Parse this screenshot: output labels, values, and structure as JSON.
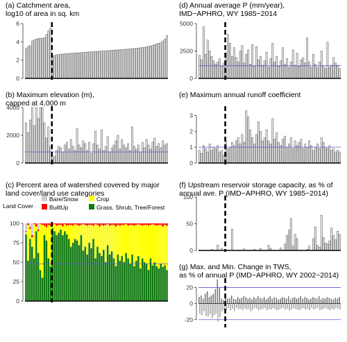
{
  "chart_data": [
    {
      "id": "a",
      "type": "bar",
      "title": "(a) Catchment area,\nlog10 of area in sq. km",
      "ylim": [
        0,
        6
      ],
      "yticks": [
        0,
        2,
        4,
        6
      ],
      "values": [
        3.3,
        3.5,
        3.6,
        4.1,
        4.2,
        4.3,
        4.35,
        4.4,
        4.4,
        4.45,
        4.8,
        5.2,
        5.5,
        2.45,
        2.5,
        2.6,
        2.6,
        2.65,
        2.65,
        2.7,
        2.7,
        2.72,
        2.75,
        2.75,
        2.78,
        2.8,
        2.8,
        2.82,
        2.85,
        2.85,
        2.88,
        2.9,
        2.9,
        2.92,
        2.95,
        2.95,
        2.98,
        3.0,
        3.0,
        3.02,
        3.05,
        3.05,
        3.08,
        3.1,
        3.1,
        3.12,
        3.15,
        3.15,
        3.18,
        3.2,
        3.2,
        3.22,
        3.25,
        3.28,
        3.3,
        3.32,
        3.35,
        3.38,
        3.4,
        3.45,
        3.5,
        3.55,
        3.6,
        3.7,
        3.8,
        3.85,
        3.9,
        4.1,
        4.3,
        4.7
      ],
      "divider_index": 13,
      "bar_fill": "#eeeeee",
      "bar_stroke": "#444444"
    },
    {
      "id": "b",
      "type": "bar",
      "title": "(b) Maximum elevation (m),\ncapped at 4,000 m",
      "ylim": [
        0,
        4000
      ],
      "yticks": [
        0,
        2000,
        4000
      ],
      "values": [
        2900,
        2200,
        3100,
        4000,
        2700,
        4000,
        3200,
        4000,
        4000,
        2900,
        1800,
        2600,
        1200,
        400,
        500,
        900,
        1200,
        1100,
        800,
        1300,
        1500,
        1000,
        1700,
        1200,
        900,
        2500,
        1300,
        1100,
        1600,
        1400,
        900,
        1500,
        700,
        1400,
        2300,
        1300,
        1000,
        2400,
        900,
        1200,
        1900,
        800,
        1100,
        1300,
        1600,
        2000,
        1000,
        1700,
        1300,
        1100,
        1400,
        900,
        2600,
        1200,
        1000,
        1300,
        800,
        1500,
        1100,
        1700,
        1300,
        1000,
        1500,
        1800,
        1200,
        1400,
        1100,
        1600,
        1300,
        1400
      ],
      "divider_index": 13,
      "ref_line": 800,
      "ref_color": "#5b5bd6"
    },
    {
      "id": "c",
      "type": "stacked_bar",
      "title": "(c) Percent area of watershed covered by major\nland cover/land use categories",
      "ylim": [
        0,
        100
      ],
      "yticks": [
        0,
        25,
        50,
        75,
        100
      ],
      "legend_title": "Land Cover",
      "legend": [
        {
          "label": "Bare/Snow",
          "color": "#cccccc"
        },
        {
          "label": "Crop",
          "color": "#ffff00"
        },
        {
          "label": "BuiltUp",
          "color": "#ff0000"
        },
        {
          "label": "Grass, Shrub, Tree/Forest",
          "color": "#127a12"
        }
      ],
      "ref_line": 48,
      "ref_color": "#5b5bd6",
      "divider_index": 13,
      "green": [
        86,
        52,
        80,
        70,
        55,
        90,
        62,
        40,
        30,
        85,
        78,
        55,
        45,
        94,
        90,
        85,
        88,
        92,
        85,
        90,
        86,
        80,
        70,
        75,
        80,
        78,
        72,
        85,
        65,
        70,
        60,
        75,
        68,
        80,
        55,
        70,
        62,
        58,
        66,
        50,
        72,
        60,
        64,
        55,
        45,
        60,
        52,
        58,
        50,
        62,
        55,
        48,
        60,
        45,
        52,
        58,
        42,
        55,
        50,
        48,
        40,
        55,
        46,
        50,
        45,
        42,
        48,
        44,
        46,
        40
      ],
      "bare": [
        10,
        0,
        5,
        15,
        0,
        0,
        8,
        0,
        0,
        0,
        0,
        0,
        0,
        0,
        0,
        0,
        0,
        0,
        0,
        0,
        0,
        0,
        0,
        0,
        0,
        0,
        0,
        0,
        0,
        0,
        0,
        0,
        0,
        0,
        0,
        0,
        0,
        0,
        0,
        0,
        0,
        0,
        0,
        0,
        0,
        0,
        0,
        0,
        0,
        0,
        0,
        0,
        0,
        0,
        0,
        0,
        0,
        0,
        0,
        0,
        0,
        0,
        0,
        0,
        0,
        0,
        0,
        0,
        0,
        0
      ],
      "built": [
        1,
        2,
        2,
        3,
        1,
        4,
        2,
        1,
        2,
        3,
        5,
        2,
        3,
        2,
        1,
        3,
        2,
        2,
        4,
        1,
        3,
        2,
        2,
        3,
        1,
        2,
        3,
        2,
        1,
        2,
        3,
        2,
        2,
        3,
        1,
        2,
        4,
        2,
        3,
        2,
        1,
        3,
        2,
        2,
        4,
        2,
        3,
        2,
        2,
        1,
        3,
        2,
        2,
        3,
        2,
        1,
        2,
        3,
        2,
        2,
        3,
        2,
        1,
        2,
        3,
        2,
        2,
        4,
        2,
        3
      ]
    },
    {
      "id": "d",
      "type": "bar",
      "title": "(d) Annual average P (mm/year),\nIMD−APHRO, WY 1985−2014",
      "ylim": [
        0,
        5000
      ],
      "yticks": [
        0,
        2500,
        5000
      ],
      "ytick_labels": [
        "0",
        "2500",
        "5000"
      ],
      "values": [
        2100,
        1700,
        4700,
        2200,
        3500,
        2500,
        2000,
        1600,
        1300,
        1500,
        1800,
        1100,
        1400,
        2300,
        4000,
        3200,
        2000,
        2800,
        1900,
        1500,
        2500,
        3000,
        1400,
        2200,
        2600,
        1300,
        3100,
        1100,
        2900,
        1700,
        2000,
        1200,
        1600,
        2400,
        1000,
        1800,
        3200,
        1500,
        2000,
        1100,
        1600,
        2800,
        1300,
        1800,
        1000,
        1500,
        2600,
        1200,
        2300,
        1100,
        1700,
        1900,
        1400,
        3700,
        1500,
        1000,
        2200,
        1300,
        1000,
        1500,
        2500,
        1100,
        900,
        3300,
        1000,
        1200,
        1900,
        1400,
        1200,
        900
      ],
      "divider_index": 13,
      "ref_line": 1150,
      "ref_color": "#5b5bd6"
    },
    {
      "id": "e",
      "type": "bar",
      "title": "(e) Maximum annual runoff coefficient",
      "ylim": [
        0,
        3.5
      ],
      "yticks": [
        0,
        1,
        2,
        3
      ],
      "values": [
        0.8,
        0.6,
        1.1,
        0.9,
        0.7,
        1.2,
        0.8,
        1.0,
        0.9,
        1.1,
        0.7,
        0.8,
        0.5,
        1.4,
        0.9,
        1.0,
        1.3,
        1.1,
        1.4,
        1.6,
        1.2,
        1.8,
        1.3,
        3.3,
        2.9,
        2.1,
        1.6,
        1.2,
        1.8,
        2.6,
        2.0,
        1.4,
        1.6,
        2.1,
        1.4,
        1.2,
        2.8,
        1.5,
        1.9,
        1.3,
        1.1,
        1.5,
        1.7,
        1.0,
        1.2,
        1.6,
        0.9,
        1.4,
        1.1,
        1.3,
        1.5,
        0.9,
        1.2,
        1.0,
        1.4,
        1.1,
        0.8,
        1.0,
        1.2,
        0.9,
        1.6,
        1.3,
        1.0,
        0.9,
        1.1,
        0.8,
        0.9,
        0.7,
        0.8,
        0.7
      ],
      "divider_index": 13,
      "ref_line": 1,
      "ref_color": "#5b5bd6"
    },
    {
      "id": "f",
      "type": "bar",
      "title": "(f) Upstream reservoir storage capacity, as % of\nannual ave. P (IMD−APHRO, WY 1985−2014)",
      "ylim": [
        0,
        100
      ],
      "yticks": [
        0,
        50,
        100
      ],
      "values": [
        0,
        0,
        0,
        0,
        0,
        0,
        2,
        0,
        0,
        10,
        0,
        4,
        0,
        0,
        0,
        0,
        40,
        0,
        0,
        0,
        0,
        0,
        3,
        0,
        0,
        0,
        0,
        2,
        0,
        0,
        4,
        0,
        0,
        0,
        10,
        4,
        0,
        0,
        0,
        0,
        5,
        0,
        12,
        28,
        38,
        60,
        8,
        30,
        22,
        0,
        0,
        0,
        0,
        2,
        8,
        0,
        22,
        44,
        10,
        6,
        66,
        24,
        14,
        12,
        18,
        42,
        28,
        20,
        36,
        30
      ],
      "divider_index": 13
    },
    {
      "id": "g",
      "type": "bar_pair",
      "title": "(g) Max. and Min. Change in TWS,\nas % of annual P (IMD−APHRO, WY 2002−2014)",
      "ylim": [
        -28,
        30
      ],
      "yticks": [
        -20,
        0,
        20
      ],
      "max_series": [
        8,
        10,
        6,
        12,
        15,
        8,
        10,
        12,
        18,
        30,
        20,
        6,
        4,
        8,
        6,
        7,
        10,
        6,
        5,
        8,
        6,
        7,
        9,
        8,
        6,
        7,
        5,
        8,
        6,
        9,
        7,
        6,
        8,
        5,
        7,
        9,
        6,
        8,
        7,
        5,
        6,
        8,
        7,
        6,
        9,
        5,
        7,
        8,
        6,
        7,
        9,
        6,
        8,
        7,
        5,
        6,
        8,
        7,
        6,
        9,
        5,
        7,
        6,
        8,
        7,
        6,
        5,
        7,
        6,
        8
      ],
      "min_series": [
        -12,
        -14,
        -9,
        -15,
        -16,
        -13,
        -18,
        -14,
        -12,
        -22,
        -16,
        -9,
        -7,
        -7,
        -5,
        -8,
        -6,
        -9,
        -5,
        -7,
        -6,
        -8,
        -5,
        -7,
        -6,
        -9,
        -7,
        -5,
        -6,
        -8,
        -7,
        -6,
        -5,
        -8,
        -6,
        -7,
        -5,
        -6,
        -8,
        -7,
        -6,
        -5,
        -7,
        -6,
        -8,
        -7,
        -5,
        -6,
        -7,
        -8,
        -6,
        -5,
        -7,
        -6,
        -8,
        -5,
        -7,
        -6,
        -5,
        -8,
        -7,
        -6,
        -5,
        -7,
        -8,
        -6,
        -7,
        -5,
        -6,
        -7
      ],
      "divider_index": 13,
      "ref_lines": [
        20,
        -20
      ],
      "ref_color": "#5b5bd6"
    }
  ]
}
